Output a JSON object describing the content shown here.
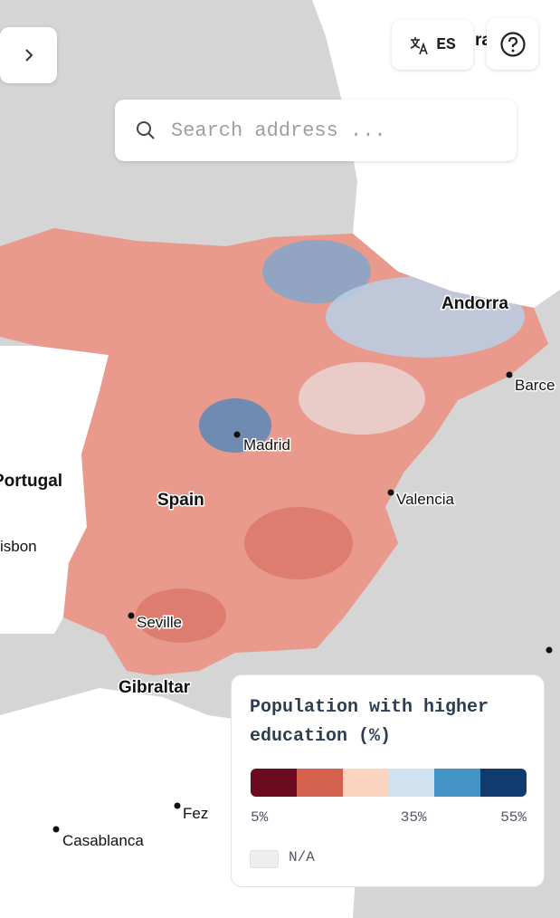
{
  "top_bar": {
    "language": "ES"
  },
  "search": {
    "placeholder": "Search address ..."
  },
  "map": {
    "labels": [
      "Andorra",
      "Barce",
      "Madrid",
      "Portugal",
      "Spain",
      "Valencia",
      "isbon",
      "Seville",
      "Gibraltar",
      "Fez",
      "Casablanca",
      "ra"
    ]
  },
  "legend": {
    "title": "Population with higher education (%)",
    "colors": [
      "#6b0b1f",
      "#d4604e",
      "#fbd4c0",
      "#d0e1f0",
      "#4393c7",
      "#0f3b6e"
    ],
    "range": [
      5,
      55
    ],
    "ticks": [
      {
        "value": 5,
        "label": "5%"
      },
      {
        "value": 35,
        "label": "35%"
      },
      {
        "value": 55,
        "label": "55%"
      }
    ],
    "na_label": "N/A"
  }
}
